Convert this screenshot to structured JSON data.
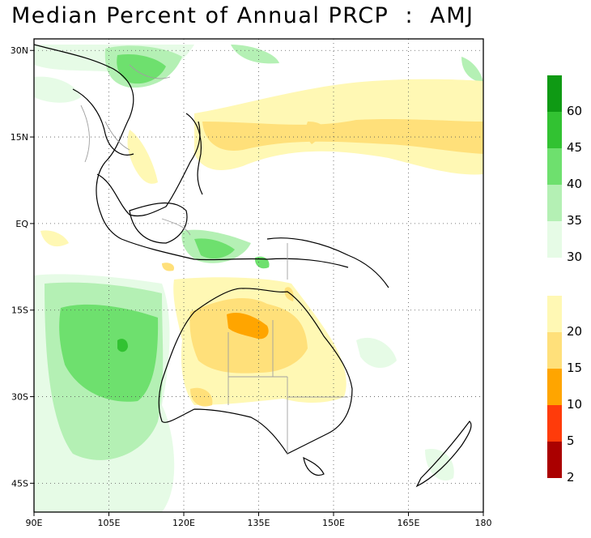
{
  "title": "Median Percent of Annual PRCP  :  AMJ",
  "map": {
    "lon_range": [
      90,
      180
    ],
    "lat_range": [
      -50,
      32
    ],
    "x_ticks": [
      {
        "value": 90,
        "label": "90E"
      },
      {
        "value": 105,
        "label": "105E"
      },
      {
        "value": 120,
        "label": "120E"
      },
      {
        "value": 135,
        "label": "135E"
      },
      {
        "value": 150,
        "label": "150E"
      },
      {
        "value": 165,
        "label": "165E"
      },
      {
        "value": 180,
        "label": "180"
      }
    ],
    "y_ticks": [
      {
        "value": 30,
        "label": "30N"
      },
      {
        "value": 15,
        "label": "15N"
      },
      {
        "value": 0,
        "label": "EQ"
      },
      {
        "value": -15,
        "label": "15S"
      },
      {
        "value": -30,
        "label": "30S"
      },
      {
        "value": -45,
        "label": "45S"
      }
    ],
    "grid": "dotted"
  },
  "legend": {
    "wet_bins": [
      {
        "color": "#0f9a14"
      },
      {
        "color": "#32c232"
      },
      {
        "color": "#6ee06e"
      },
      {
        "color": "#b4f0b4"
      },
      {
        "color": "#e6fbe6"
      }
    ],
    "wet_labels": [
      "60",
      "45",
      "40",
      "35",
      "30"
    ],
    "dry_bins": [
      {
        "color": "#fff8b4"
      },
      {
        "color": "#ffe07a"
      },
      {
        "color": "#ffa500"
      },
      {
        "color": "#ff3b0a"
      },
      {
        "color": "#aa0000"
      }
    ],
    "dry_labels": [
      "20",
      "15",
      "10",
      "5",
      "2"
    ]
  }
}
